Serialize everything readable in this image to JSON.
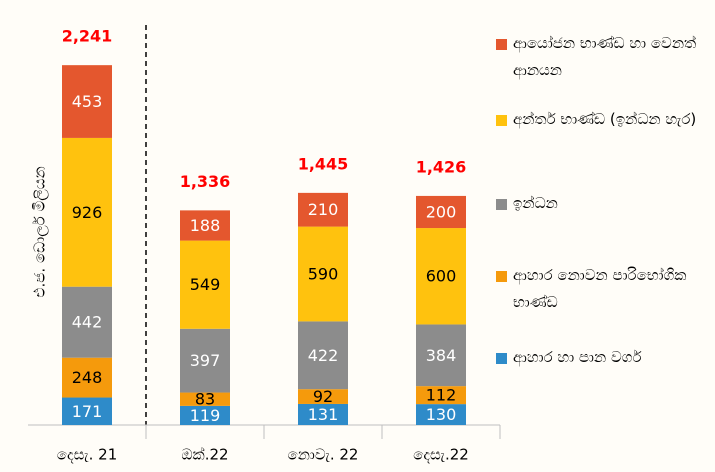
{
  "chart_data": {
    "type": "stacked_bar",
    "y_label": "එ.ජ. ඩොලර් මිලියන",
    "categories": [
      "දෙසැ. 21",
      "ඔක්.22",
      "නොවැ. 22",
      "දෙසැ.22"
    ],
    "series": [
      {
        "name": "ආහාර හා පාන වර්ග",
        "color": "#2e8bc9",
        "label_color": "#ffffff",
        "values": [
          171,
          119,
          131,
          130
        ]
      },
      {
        "name": "ආහාර නොවන පාරිභෝගික භාණ්ඩ",
        "color": "#f59a0c",
        "label_color": "#000000",
        "values": [
          248,
          83,
          92,
          112
        ]
      },
      {
        "name": "ඉන්ධන",
        "color": "#8c8c8c",
        "label_color": "#ffffff",
        "values": [
          442,
          397,
          422,
          384
        ]
      },
      {
        "name": "අන්තර් භාණ්ඩ (ඉන්ධන හැර)",
        "color": "#ffc20e",
        "label_color": "#000000",
        "values": [
          926,
          549,
          590,
          600
        ]
      },
      {
        "name": "ආයෝජන භාණ්ඩ හා වෙනත් ආනයන",
        "color": "#e4572e",
        "label_color": "#ffffff",
        "values": [
          453,
          188,
          210,
          200
        ]
      }
    ],
    "totals": {
      "values": [
        2241,
        1336,
        1445,
        1426
      ],
      "value_labels": [
        "2,241",
        "1,336",
        "1,445",
        "1,426"
      ]
    }
  }
}
